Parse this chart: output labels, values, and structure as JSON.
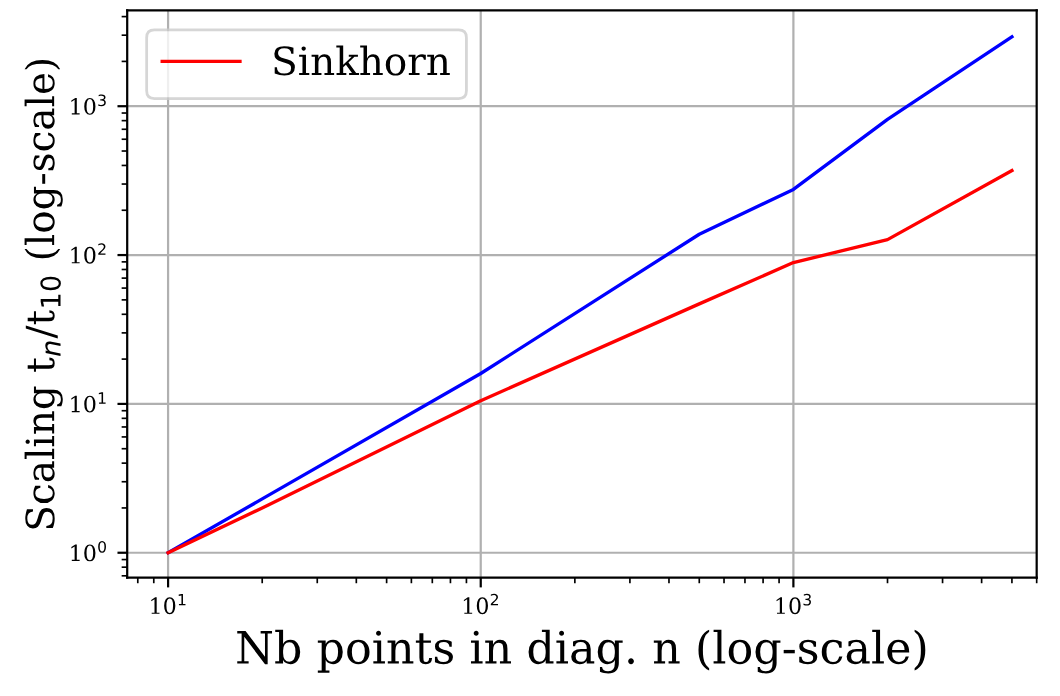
{
  "chart_data": {
    "type": "line",
    "xlabel": "Nb points in diag. n (log-scale)",
    "ylabel": "Scaling t$_{n}$/t$_{10}$ (log-scale)",
    "x": [
      10,
      20,
      100,
      500,
      1000,
      2000,
      5000
    ],
    "series": [
      {
        "color": "#0000ff",
        "values": [
          1,
          2.3,
          16,
          138,
          276,
          815,
          2930
        ]
      },
      {
        "name": "Sinkhorn",
        "color": "#ff0000",
        "values": [
          1,
          2.0,
          10.5,
          47,
          89,
          127,
          370
        ]
      }
    ],
    "log": "xy",
    "xlim": [
      7.4,
      6000
    ],
    "ylim": [
      0.68,
      4400
    ],
    "xticks": [
      {
        "value": 10,
        "label": "10$^{1}$"
      },
      {
        "value": 100,
        "label": "10$^{2}$"
      },
      {
        "value": 1000,
        "label": "10$^{3}$"
      }
    ],
    "yticks": [
      {
        "value": 1,
        "label": "10$^{0}$"
      },
      {
        "value": 10,
        "label": "10$^{1}$"
      },
      {
        "value": 100,
        "label": "10$^{2}$"
      },
      {
        "value": 1000,
        "label": "10$^{3}$"
      }
    ],
    "grid": true,
    "legend": "upper left",
    "marker": "none",
    "line_style": "solid"
  }
}
